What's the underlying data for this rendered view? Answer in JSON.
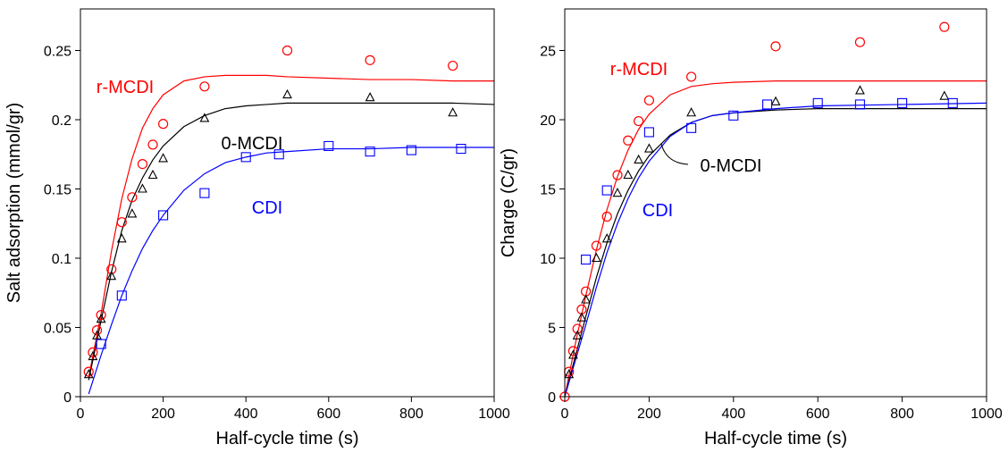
{
  "chart_data": [
    {
      "type": "scatter",
      "xlabel": "Half-cycle time (s)",
      "ylabel": "Salt adsorption (mmol/gr)",
      "xlim": [
        0,
        1000
      ],
      "ylim": [
        0,
        0.28
      ],
      "xticks": [
        0,
        200,
        400,
        600,
        800,
        1000
      ],
      "xtick_labels": [
        "0",
        "200",
        "400",
        "600",
        "800",
        "1000"
      ],
      "yticks": [
        0,
        0.05,
        0.1,
        0.15,
        0.2,
        0.25
      ],
      "ytick_labels": [
        "0",
        "0.05",
        "0.1",
        "0.15",
        "0.2",
        "0.25"
      ],
      "grid": false,
      "series": [
        {
          "name": "r-MCDI",
          "color": "#ff0000",
          "marker": "circle",
          "x": [
            20,
            30,
            40,
            50,
            75,
            100,
            125,
            150,
            175,
            200,
            300,
            500,
            700,
            900
          ],
          "y": [
            0.018,
            0.032,
            0.048,
            0.059,
            0.092,
            0.126,
            0.144,
            0.168,
            0.182,
            0.197,
            0.224,
            0.25,
            0.243,
            0.239
          ],
          "fit_x": [
            20,
            50,
            75,
            100,
            125,
            150,
            175,
            200,
            250,
            300,
            350,
            400,
            450,
            500,
            600,
            700,
            800,
            900,
            1000
          ],
          "fit_y": [
            0.014,
            0.06,
            0.105,
            0.143,
            0.172,
            0.194,
            0.208,
            0.218,
            0.228,
            0.231,
            0.232,
            0.232,
            0.232,
            0.231,
            0.23,
            0.229,
            0.229,
            0.228,
            0.228
          ]
        },
        {
          "name": "0-MCDI",
          "color": "#000000",
          "marker": "triangle",
          "x": [
            20,
            30,
            40,
            50,
            75,
            100,
            125,
            150,
            175,
            200,
            300,
            500,
            700,
            900
          ],
          "y": [
            0.016,
            0.029,
            0.044,
            0.056,
            0.087,
            0.114,
            0.132,
            0.15,
            0.16,
            0.172,
            0.201,
            0.218,
            0.216,
            0.205
          ],
          "fit_x": [
            20,
            50,
            75,
            100,
            125,
            150,
            175,
            200,
            250,
            300,
            350,
            400,
            450,
            500,
            600,
            700,
            800,
            900,
            1000
          ],
          "fit_y": [
            0.012,
            0.055,
            0.09,
            0.12,
            0.142,
            0.158,
            0.171,
            0.181,
            0.195,
            0.203,
            0.208,
            0.21,
            0.211,
            0.212,
            0.212,
            0.212,
            0.212,
            0.212,
            0.211
          ]
        },
        {
          "name": "CDI",
          "color": "#0000ff",
          "marker": "square",
          "x": [
            50,
            100,
            200,
            300,
            400,
            480,
            600,
            700,
            800,
            920
          ],
          "y": [
            0.038,
            0.073,
            0.131,
            0.147,
            0.173,
            0.175,
            0.181,
            0.177,
            0.178,
            0.179
          ],
          "fit_x": [
            20,
            50,
            75,
            100,
            125,
            150,
            175,
            200,
            250,
            300,
            350,
            400,
            450,
            500,
            600,
            700,
            800,
            900,
            1000
          ],
          "fit_y": [
            0.002,
            0.03,
            0.052,
            0.073,
            0.091,
            0.107,
            0.12,
            0.131,
            0.149,
            0.161,
            0.169,
            0.173,
            0.176,
            0.177,
            0.179,
            0.179,
            0.18,
            0.18,
            0.18
          ]
        }
      ],
      "annotations": [
        {
          "text": "r-MCDI",
          "color": "#ff0000"
        },
        {
          "text": "0-MCDI",
          "color": "#000000"
        },
        {
          "text": "CDI",
          "color": "#0000ff"
        }
      ]
    },
    {
      "type": "scatter",
      "xlabel": "Half-cycle time (s)",
      "ylabel": "Charge (C/gr)",
      "xlim": [
        0,
        1000
      ],
      "ylim": [
        0,
        28
      ],
      "xticks": [
        0,
        200,
        400,
        600,
        800,
        1000
      ],
      "xtick_labels": [
        "0",
        "200",
        "400",
        "600",
        "800",
        "1000"
      ],
      "yticks": [
        0,
        5,
        10,
        15,
        20,
        25
      ],
      "ytick_labels": [
        "0",
        "5",
        "10",
        "15",
        "20",
        "25"
      ],
      "grid": false,
      "series": [
        {
          "name": "r-MCDI",
          "color": "#ff0000",
          "marker": "circle",
          "x": [
            0,
            10,
            20,
            30,
            40,
            50,
            75,
            100,
            125,
            150,
            175,
            200,
            300,
            500,
            700,
            900
          ],
          "y": [
            0,
            1.8,
            3.3,
            4.9,
            6.3,
            7.6,
            10.9,
            13.0,
            16.0,
            18.5,
            19.9,
            21.4,
            23.1,
            25.3,
            25.6,
            26.7
          ],
          "fit_x": [
            0,
            25,
            50,
            75,
            100,
            125,
            150,
            175,
            200,
            250,
            300,
            350,
            400,
            500,
            600,
            800,
            1000
          ],
          "fit_y": [
            0,
            3.8,
            7.3,
            10.6,
            13.5,
            15.9,
            17.8,
            19.3,
            20.4,
            21.8,
            22.4,
            22.6,
            22.7,
            22.8,
            22.8,
            22.8,
            22.8
          ]
        },
        {
          "name": "0-MCDI",
          "color": "#000000",
          "marker": "triangle",
          "x": [
            10,
            20,
            30,
            40,
            50,
            75,
            100,
            125,
            150,
            175,
            200,
            300,
            500,
            700,
            900
          ],
          "y": [
            1.6,
            3.0,
            4.4,
            5.7,
            7.0,
            10.0,
            11.4,
            14.7,
            16.0,
            17.1,
            17.9,
            20.5,
            21.3,
            22.1,
            21.7
          ],
          "fit_x": [
            0,
            25,
            50,
            75,
            100,
            125,
            150,
            175,
            200,
            250,
            300,
            350,
            400,
            500,
            600,
            800,
            1000
          ],
          "fit_y": [
            0,
            2.9,
            5.8,
            8.6,
            11.1,
            13.2,
            14.9,
            16.3,
            17.4,
            18.9,
            19.8,
            20.3,
            20.5,
            20.7,
            20.8,
            20.8,
            20.8
          ]
        },
        {
          "name": "CDI",
          "color": "#0000ff",
          "marker": "square",
          "x": [
            50,
            100,
            200,
            300,
            400,
            480,
            600,
            700,
            800,
            920
          ],
          "y": [
            9.9,
            14.9,
            19.1,
            19.4,
            20.3,
            21.1,
            21.2,
            21.1,
            21.2,
            21.2
          ],
          "fit_x": [
            0,
            25,
            50,
            75,
            100,
            125,
            150,
            175,
            200,
            250,
            300,
            350,
            400,
            500,
            600,
            800,
            1000
          ],
          "fit_y": [
            0,
            2.6,
            5.2,
            7.9,
            10.4,
            12.5,
            14.3,
            15.8,
            17.0,
            18.8,
            19.8,
            20.3,
            20.5,
            20.8,
            21.0,
            21.1,
            21.2
          ]
        }
      ],
      "annotations": [
        {
          "text": "r-MCDI",
          "color": "#ff0000"
        },
        {
          "text": "0-MCDI",
          "color": "#000000"
        },
        {
          "text": "CDI",
          "color": "#0000ff"
        }
      ]
    }
  ]
}
